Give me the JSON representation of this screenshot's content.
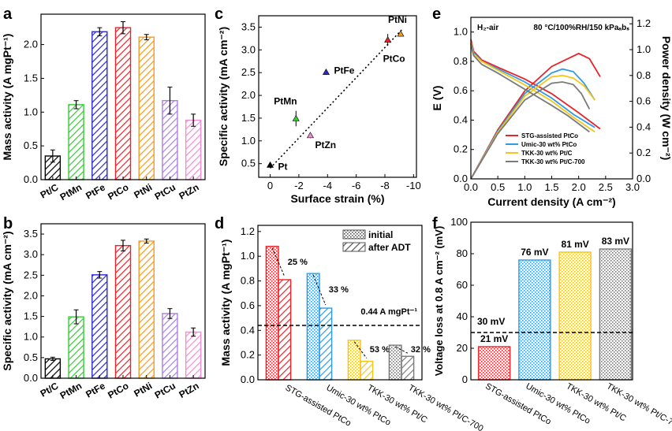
{
  "colors": {
    "black": "#000000",
    "green": "#33cc33",
    "blue": "#2a2acc",
    "red": "#e8242a",
    "orange": "#f59b1c",
    "purple": "#a97ee0",
    "pink": "#f48bd1",
    "lightblue": "#2f9be6",
    "yellow": "#f5c518",
    "gray": "#7a7a7a"
  },
  "chart_data": [
    {
      "panel": "a",
      "type": "bar",
      "ylabel": "Mass activity (A mgPt-1)",
      "yticks": [
        0.0,
        0.5,
        1.0,
        1.5,
        2.0
      ],
      "ylim": [
        0,
        2.45
      ],
      "categories": [
        "Pt/C",
        "PtMn",
        "PtFe",
        "PtCo",
        "PtNi",
        "PtCu",
        "PtZn"
      ],
      "values": [
        0.35,
        1.11,
        2.19,
        2.25,
        2.11,
        1.17,
        0.88
      ],
      "errors": [
        0.09,
        0.06,
        0.06,
        0.09,
        0.04,
        0.2,
        0.09
      ]
    },
    {
      "panel": "b",
      "type": "bar",
      "ylabel": "Specific activity (mA cm-2)",
      "yticks": [
        0.0,
        0.5,
        1.0,
        1.5,
        2.0,
        2.5,
        3.0,
        3.5
      ],
      "ylim": [
        0,
        3.75
      ],
      "categories": [
        "Pt/C",
        "PtMn",
        "PtFe",
        "PtCo",
        "PtNi",
        "PtCu",
        "PtZn"
      ],
      "values": [
        0.47,
        1.49,
        2.51,
        3.22,
        3.33,
        1.57,
        1.12
      ],
      "errors": [
        0.04,
        0.17,
        0.08,
        0.13,
        0.05,
        0.12,
        0.1
      ]
    },
    {
      "panel": "c",
      "type": "scatter",
      "xlabel": "Surface strain (%)",
      "ylabel": "Specific activity (mA cm-2)",
      "xlim": [
        0.8,
        -10.2
      ],
      "ylim": [
        0.2,
        3.75
      ],
      "xticks": [
        0,
        -2,
        -4,
        -6,
        -8,
        -10
      ],
      "yticks": [
        0.5,
        1.0,
        1.5,
        2.0,
        2.5,
        3.0,
        3.5
      ],
      "points": [
        {
          "name": "Pt",
          "x": 0.0,
          "y": 0.47,
          "err": 0.04
        },
        {
          "name": "PtMn",
          "x": -1.8,
          "y": 1.49,
          "err": 0.17
        },
        {
          "name": "PtZn",
          "x": -2.8,
          "y": 1.12,
          "err": 0.06
        },
        {
          "name": "PtFe",
          "x": -3.9,
          "y": 2.51,
          "err": 0.06
        },
        {
          "name": "PtCo",
          "x": -8.2,
          "y": 3.22,
          "err": 0.13
        },
        {
          "name": "PtNi",
          "x": -9.1,
          "y": 3.35,
          "err": 0.05
        }
      ],
      "fit": {
        "x": [
          0.0,
          -9.2
        ],
        "y": [
          0.4,
          3.45
        ]
      }
    },
    {
      "panel": "d",
      "type": "bar",
      "ylabel": "Mass activity (A mgPt-1)",
      "yticks": [
        0.0,
        0.2,
        0.4,
        0.6,
        0.8,
        1.0,
        1.2
      ],
      "ylim": [
        0,
        1.25
      ],
      "categories": [
        "STG-assisted PtCo",
        "Umic-30 wt% PtCo",
        "TKK-30 wt% Pt/C",
        "TKK-30 wt% Pt/C-700"
      ],
      "series": [
        {
          "name": "initial",
          "values": [
            1.08,
            0.86,
            0.32,
            0.28
          ]
        },
        {
          "name": "after ADT",
          "values": [
            0.81,
            0.58,
            0.15,
            0.19
          ]
        }
      ],
      "losses": [
        "25 %",
        "33 %",
        "53 %",
        "32 %"
      ],
      "target": 0.44,
      "target_label": "0.44 A mgPt-1"
    },
    {
      "panel": "e",
      "type": "line",
      "xlabel": "Current density (A cm-2)",
      "ylabel": "E (V)",
      "y2label": "Power density (W cm-2)",
      "xlim": [
        0,
        3.0
      ],
      "ylim": [
        0,
        1.1
      ],
      "y2lim": [
        0,
        1.25
      ],
      "xticks": [
        0.0,
        0.5,
        1.0,
        1.5,
        2.0,
        2.5,
        3.0
      ],
      "yticks": [
        0.0,
        0.2,
        0.4,
        0.6,
        0.8,
        1.0
      ],
      "y2ticks": [
        0.0,
        0.2,
        0.4,
        0.6,
        0.8,
        1.0,
        1.2
      ],
      "annotation_left": "H2-air",
      "annotation_right": "80 °C/100%RH/150 kPaabs",
      "series": [
        {
          "name": "STG-assisted PtCo",
          "x": [
            0,
            0.05,
            0.2,
            0.5,
            1.0,
            1.5,
            2.0,
            2.4
          ],
          "E": [
            0.95,
            0.87,
            0.81,
            0.76,
            0.68,
            0.58,
            0.45,
            0.34
          ],
          "x_p": [
            0,
            0.5,
            1.0,
            1.5,
            1.8,
            2.0,
            2.2,
            2.4
          ],
          "P": [
            0,
            0.38,
            0.68,
            0.87,
            0.93,
            0.97,
            0.93,
            0.79
          ]
        },
        {
          "name": "Umic-30 wt% PtCo",
          "x": [
            0,
            0.05,
            0.2,
            0.5,
            1.0,
            1.5,
            1.9,
            2.3
          ],
          "E": [
            0.93,
            0.86,
            0.8,
            0.75,
            0.66,
            0.55,
            0.44,
            0.35
          ],
          "x_p": [
            0,
            0.5,
            1.0,
            1.5,
            1.7,
            1.9,
            2.1,
            2.3
          ],
          "P": [
            0,
            0.37,
            0.66,
            0.82,
            0.85,
            0.83,
            0.74,
            0.61
          ]
        },
        {
          "name": "TKK-30 wt% Pt/C",
          "x": [
            0,
            0.05,
            0.2,
            0.5,
            1.0,
            1.5,
            1.9,
            2.3
          ],
          "E": [
            0.93,
            0.85,
            0.8,
            0.74,
            0.64,
            0.53,
            0.42,
            0.32
          ],
          "x_p": [
            0,
            0.5,
            1.0,
            1.5,
            1.7,
            1.9,
            2.1,
            2.3
          ],
          "P": [
            0,
            0.36,
            0.64,
            0.79,
            0.8,
            0.78,
            0.72,
            0.61
          ]
        },
        {
          "name": "TKK-30 wt% Pt/C-700",
          "x": [
            0,
            0.05,
            0.2,
            0.5,
            1.0,
            1.5,
            1.8,
            2.2
          ],
          "E": [
            0.92,
            0.84,
            0.78,
            0.72,
            0.61,
            0.5,
            0.43,
            0.32
          ],
          "x_p": [
            0,
            0.5,
            1.0,
            1.5,
            1.7,
            1.9,
            2.05,
            2.2
          ],
          "P": [
            0,
            0.35,
            0.61,
            0.74,
            0.75,
            0.73,
            0.66,
            0.54
          ]
        }
      ]
    },
    {
      "panel": "f",
      "type": "bar",
      "ylabel": "Voltage loss at 0.8 A cm-2 (mV)",
      "yticks": [
        0,
        20,
        40,
        60,
        80,
        100
      ],
      "ylim": [
        0,
        100
      ],
      "categories": [
        "STG-assisted PtCo",
        "Umic-30 wt% PtCo",
        "TKK-30 wt% Pt/C",
        "TKK-30 wt% Pt/C-700"
      ],
      "values": [
        21,
        76,
        81,
        83
      ],
      "value_labels": [
        "21 mV",
        "76 mV",
        "81 mV",
        "83 mV"
      ],
      "target": 30,
      "target_label": "30 mV"
    }
  ],
  "panels": {
    "a": "a",
    "b": "b",
    "c": "c",
    "d": "d",
    "e": "e",
    "f": "f"
  },
  "legend_d": {
    "initial": "initial",
    "after": "after ADT"
  }
}
